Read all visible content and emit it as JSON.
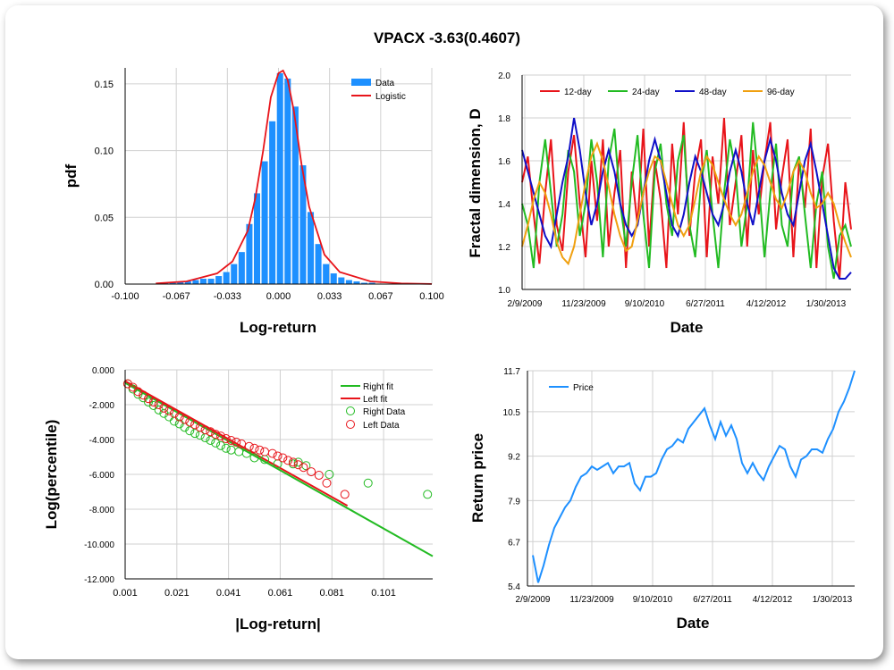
{
  "title": "VPACX -3.63(0.4607)",
  "colors": {
    "blue": "#1e90ff",
    "red": "#e8141a",
    "green": "#22bb22",
    "navy": "#1010c8",
    "orange": "#f0a010",
    "grid": "#d0d0d0"
  },
  "chart_data": [
    {
      "type": "bar",
      "ylabel": "pdf",
      "xlabel": "Log-return",
      "xlim": [
        -0.1,
        0.1
      ],
      "ylim": [
        0,
        0.162
      ],
      "xticks": [
        "-0.100",
        "-0.067",
        "-0.033",
        "0.000",
        "0.033",
        "0.067",
        "0.100"
      ],
      "yticks": [
        "0.00",
        "0.05",
        "0.10",
        "0.15"
      ],
      "legend": [
        "Data",
        "Logistic"
      ],
      "bars": {
        "centers": [
          -0.074,
          -0.069,
          -0.064,
          -0.059,
          -0.054,
          -0.049,
          -0.044,
          -0.039,
          -0.034,
          -0.029,
          -0.024,
          -0.019,
          -0.014,
          -0.009,
          -0.004,
          0.001,
          0.006,
          0.011,
          0.016,
          0.021,
          0.026,
          0.031,
          0.036,
          0.041,
          0.046,
          0.051,
          0.056,
          0.061
        ],
        "values": [
          0.001,
          0.001,
          0.002,
          0.002,
          0.003,
          0.004,
          0.004,
          0.006,
          0.009,
          0.015,
          0.024,
          0.045,
          0.068,
          0.092,
          0.122,
          0.158,
          0.154,
          0.133,
          0.089,
          0.054,
          0.03,
          0.015,
          0.008,
          0.005,
          0.003,
          0.002,
          0.001,
          0.001
        ]
      },
      "logistic": {
        "x": [
          -0.08,
          -0.06,
          -0.04,
          -0.03,
          -0.02,
          -0.015,
          -0.01,
          -0.005,
          0,
          0.003,
          0.006,
          0.01,
          0.015,
          0.02,
          0.03,
          0.04,
          0.06,
          0.08,
          0.1
        ],
        "y": [
          0.0005,
          0.002,
          0.008,
          0.017,
          0.04,
          0.065,
          0.1,
          0.14,
          0.158,
          0.16,
          0.153,
          0.13,
          0.09,
          0.058,
          0.022,
          0.009,
          0.002,
          0.0005,
          0.0001
        ]
      }
    },
    {
      "type": "line",
      "ylabel": "Fractal dimension, D",
      "xlabel": "Date",
      "xticks": [
        "2/9/2009",
        "11/23/2009",
        "9/10/2010",
        "6/27/2011",
        "4/12/2012",
        "1/30/2013"
      ],
      "ylim": [
        1.0,
        2.0
      ],
      "yticks": [
        "1.0",
        "1.2",
        "1.4",
        "1.6",
        "1.8",
        "2.0"
      ],
      "series": [
        {
          "name": "12-day",
          "color": "#e8141a",
          "values": [
            1.5,
            1.62,
            1.35,
            1.12,
            1.45,
            1.7,
            1.3,
            1.18,
            1.55,
            1.72,
            1.4,
            1.15,
            1.6,
            1.32,
            1.7,
            1.2,
            1.45,
            1.65,
            1.1,
            1.55,
            1.3,
            1.75,
            1.2,
            1.6,
            1.42,
            1.1,
            1.68,
            1.35,
            1.78,
            1.25,
            1.55,
            1.7,
            1.15,
            1.62,
            1.4,
            1.8,
            1.3,
            1.5,
            1.72,
            1.2,
            1.65,
            1.35,
            1.6,
            1.78,
            1.28,
            1.52,
            1.7,
            1.15,
            1.6,
            1.38,
            1.75,
            1.1,
            1.52,
            1.68,
            1.32,
            1.05,
            1.5,
            1.28
          ]
        },
        {
          "name": "24-day",
          "color": "#22bb22",
          "values": [
            1.4,
            1.3,
            1.1,
            1.5,
            1.7,
            1.45,
            1.2,
            1.35,
            1.65,
            1.55,
            1.25,
            1.4,
            1.7,
            1.5,
            1.15,
            1.6,
            1.75,
            1.4,
            1.2,
            1.5,
            1.72,
            1.35,
            1.1,
            1.55,
            1.68,
            1.4,
            1.25,
            1.6,
            1.72,
            1.3,
            1.15,
            1.5,
            1.65,
            1.35,
            1.1,
            1.45,
            1.7,
            1.55,
            1.2,
            1.4,
            1.78,
            1.5,
            1.15,
            1.45,
            1.68,
            1.3,
            1.2,
            1.55,
            1.62,
            1.35,
            1.1,
            1.4,
            1.55,
            1.2,
            1.05,
            1.25,
            1.3,
            1.2
          ]
        },
        {
          "name": "48-day",
          "color": "#1010c8",
          "values": [
            1.65,
            1.55,
            1.45,
            1.35,
            1.25,
            1.2,
            1.35,
            1.5,
            1.62,
            1.8,
            1.65,
            1.45,
            1.3,
            1.4,
            1.55,
            1.65,
            1.55,
            1.4,
            1.3,
            1.25,
            1.3,
            1.45,
            1.6,
            1.7,
            1.6,
            1.45,
            1.3,
            1.25,
            1.35,
            1.5,
            1.62,
            1.55,
            1.45,
            1.35,
            1.3,
            1.4,
            1.55,
            1.65,
            1.55,
            1.4,
            1.3,
            1.45,
            1.6,
            1.7,
            1.6,
            1.45,
            1.35,
            1.3,
            1.45,
            1.6,
            1.68,
            1.55,
            1.4,
            1.25,
            1.1,
            1.05,
            1.05,
            1.08
          ]
        },
        {
          "name": "96-day",
          "color": "#f0a010",
          "values": [
            1.2,
            1.3,
            1.42,
            1.5,
            1.45,
            1.35,
            1.22,
            1.15,
            1.12,
            1.2,
            1.35,
            1.5,
            1.62,
            1.68,
            1.6,
            1.48,
            1.35,
            1.25,
            1.18,
            1.2,
            1.32,
            1.45,
            1.55,
            1.62,
            1.6,
            1.5,
            1.4,
            1.3,
            1.25,
            1.3,
            1.42,
            1.55,
            1.62,
            1.58,
            1.5,
            1.42,
            1.35,
            1.3,
            1.35,
            1.45,
            1.55,
            1.62,
            1.58,
            1.5,
            1.42,
            1.38,
            1.45,
            1.55,
            1.6,
            1.55,
            1.45,
            1.38,
            1.4,
            1.45,
            1.4,
            1.3,
            1.22,
            1.15
          ]
        }
      ]
    },
    {
      "type": "scatter",
      "ylabel": "Log(percentile)",
      "xlabel": "|Log-return|",
      "xlim": [
        0.001,
        0.12
      ],
      "ylim": [
        -12.0,
        0.0
      ],
      "xticks": [
        "0.001",
        "0.021",
        "0.041",
        "0.061",
        "0.081",
        "0.101"
      ],
      "yticks": [
        "0.000",
        "-2.000",
        "-4.000",
        "-6.000",
        "-8.000",
        "-10.000",
        "-12.000"
      ],
      "legend": [
        "Right fit",
        "Left fit",
        "Right Data",
        "Left Data"
      ],
      "right_fit": {
        "x": [
          0.001,
          0.12
        ],
        "y": [
          -0.75,
          -10.7
        ]
      },
      "left_fit": {
        "x": [
          0.001,
          0.087
        ],
        "y": [
          -0.65,
          -7.8
        ]
      },
      "right_data": {
        "x": [
          0.002,
          0.004,
          0.006,
          0.008,
          0.01,
          0.012,
          0.014,
          0.016,
          0.018,
          0.02,
          0.022,
          0.024,
          0.026,
          0.028,
          0.03,
          0.032,
          0.034,
          0.036,
          0.038,
          0.04,
          0.042,
          0.045,
          0.048,
          0.051,
          0.055,
          0.06,
          0.066,
          0.068,
          0.071,
          0.08,
          0.095,
          0.118
        ],
        "y": [
          -0.8,
          -1.1,
          -1.4,
          -1.6,
          -1.85,
          -2.05,
          -2.3,
          -2.5,
          -2.7,
          -2.95,
          -3.1,
          -3.3,
          -3.5,
          -3.65,
          -3.75,
          -3.9,
          -4.05,
          -4.2,
          -4.35,
          -4.5,
          -4.6,
          -4.7,
          -4.8,
          -5.05,
          -5.15,
          -5.4,
          -5.4,
          -5.3,
          -5.5,
          -6.0,
          -6.5,
          -7.15
        ]
      },
      "left_data": {
        "x": [
          0.002,
          0.004,
          0.006,
          0.008,
          0.01,
          0.012,
          0.014,
          0.016,
          0.018,
          0.02,
          0.022,
          0.024,
          0.026,
          0.028,
          0.03,
          0.032,
          0.034,
          0.036,
          0.038,
          0.04,
          0.042,
          0.044,
          0.046,
          0.049,
          0.051,
          0.053,
          0.055,
          0.058,
          0.06,
          0.062,
          0.064,
          0.066,
          0.068,
          0.07,
          0.073,
          0.076,
          0.079,
          0.086
        ],
        "y": [
          -0.8,
          -1.0,
          -1.25,
          -1.45,
          -1.65,
          -1.85,
          -2.0,
          -2.2,
          -2.35,
          -2.5,
          -2.7,
          -2.85,
          -3.0,
          -3.15,
          -3.3,
          -3.45,
          -3.55,
          -3.7,
          -3.8,
          -3.95,
          -4.05,
          -4.15,
          -4.25,
          -4.4,
          -4.5,
          -4.6,
          -4.7,
          -4.8,
          -4.95,
          -5.05,
          -5.2,
          -5.3,
          -5.45,
          -5.6,
          -5.85,
          -6.05,
          -6.5,
          -7.15
        ]
      }
    },
    {
      "type": "line",
      "ylabel": "Return price",
      "xlabel": "Date",
      "xticks": [
        "2/9/2009",
        "11/23/2009",
        "9/10/2010",
        "6/27/2011",
        "4/12/2012",
        "1/30/2013"
      ],
      "ylim": [
        5.4,
        11.7
      ],
      "yticks": [
        "5.4",
        "6.7",
        "7.9",
        "9.2",
        "10.5",
        "11.7"
      ],
      "series": [
        {
          "name": "Price",
          "color": "#1e90ff",
          "values": [
            6.3,
            5.5,
            6.0,
            6.6,
            7.1,
            7.4,
            7.7,
            7.9,
            8.3,
            8.6,
            8.7,
            8.9,
            8.8,
            8.9,
            9.0,
            8.7,
            8.9,
            8.9,
            9.0,
            8.4,
            8.2,
            8.6,
            8.6,
            8.7,
            9.1,
            9.4,
            9.5,
            9.7,
            9.6,
            10.0,
            10.2,
            10.4,
            10.6,
            10.1,
            9.7,
            10.2,
            9.8,
            10.1,
            9.7,
            9.0,
            8.7,
            9.0,
            8.7,
            8.5,
            8.9,
            9.2,
            9.5,
            9.4,
            8.9,
            8.6,
            9.1,
            9.2,
            9.4,
            9.4,
            9.3,
            9.7,
            10.0,
            10.5,
            10.8,
            11.2,
            11.7
          ]
        }
      ]
    }
  ]
}
